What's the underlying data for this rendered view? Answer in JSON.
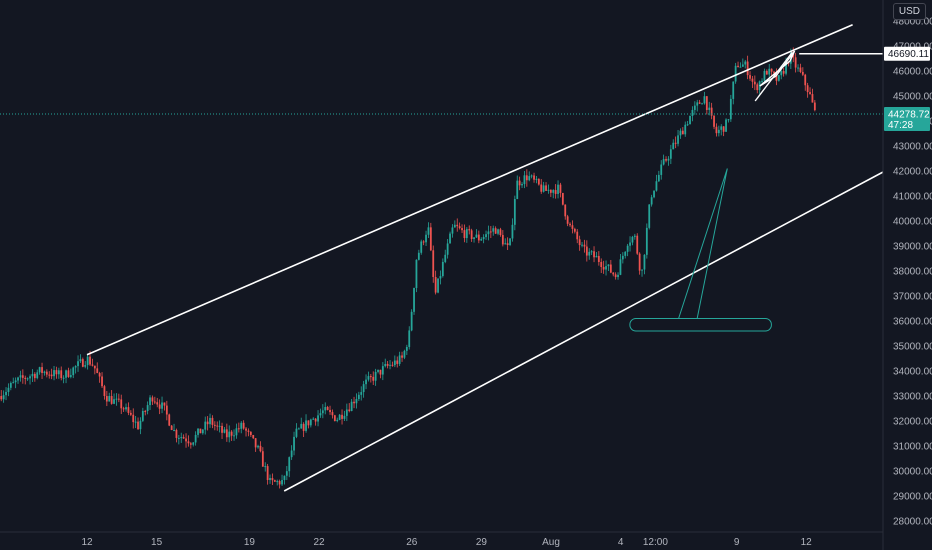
{
  "currency_label": "USD",
  "colors": {
    "background": "#131722",
    "up": "#26a69a",
    "down": "#ef5350",
    "drawing": "#ffffff",
    "last_price": "#26a69a",
    "axis_text": "#b2b5be"
  },
  "chart_data": {
    "type": "candlestick",
    "ylim": [
      27500,
      48500
    ],
    "y_ticks": [
      28000,
      29000,
      30000,
      31000,
      32000,
      33000,
      34000,
      35000,
      36000,
      37000,
      38000,
      39000,
      40000,
      41000,
      42000,
      43000,
      44000,
      45000,
      46000,
      47000,
      48000
    ],
    "y_tick_labels": [
      "28000.00",
      "29000.00",
      "30000.00",
      "31000.00",
      "32000.00",
      "33000.00",
      "34000.00",
      "35000.00",
      "36000.00",
      "37000.00",
      "38000.00",
      "39000.00",
      "40000.00",
      "41000.00",
      "42000.00",
      "43000.00",
      "44000.00",
      "45000.00",
      "46000.00",
      "47000.00",
      "48000.00"
    ],
    "x_ticks": [
      {
        "label": "12",
        "t": 12
      },
      {
        "label": "15",
        "t": 15
      },
      {
        "label": "19",
        "t": 19
      },
      {
        "label": "22",
        "t": 22
      },
      {
        "label": "26",
        "t": 26
      },
      {
        "label": "29",
        "t": 29
      },
      {
        "label": "Aug",
        "t": 32
      },
      {
        "label": "4",
        "t": 35
      },
      {
        "label": "12:00",
        "t": 36.5
      },
      {
        "label": "9",
        "t": 40
      },
      {
        "label": "12",
        "t": 43
      }
    ],
    "price_path": [
      [
        8.2,
        33000
      ],
      [
        9.0,
        33600
      ],
      [
        10.0,
        34000
      ],
      [
        11.0,
        33800
      ],
      [
        12.0,
        34500
      ],
      [
        12.3,
        34200
      ],
      [
        12.8,
        33000
      ],
      [
        13.5,
        32600
      ],
      [
        14.2,
        31800
      ],
      [
        14.8,
        33000
      ],
      [
        15.3,
        32500
      ],
      [
        15.8,
        31500
      ],
      [
        16.5,
        31200
      ],
      [
        17.3,
        32000
      ],
      [
        18.0,
        31400
      ],
      [
        18.7,
        31800
      ],
      [
        19.4,
        30800
      ],
      [
        19.9,
        29500
      ],
      [
        20.5,
        29600
      ],
      [
        21.0,
        31500
      ],
      [
        21.6,
        32000
      ],
      [
        22.2,
        32400
      ],
      [
        22.8,
        32100
      ],
      [
        23.4,
        32700
      ],
      [
        24.0,
        33500
      ],
      [
        24.8,
        34100
      ],
      [
        25.6,
        34500
      ],
      [
        25.9,
        35500
      ],
      [
        26.2,
        38500
      ],
      [
        26.7,
        39800
      ],
      [
        27.0,
        37000
      ],
      [
        27.4,
        38500
      ],
      [
        27.8,
        39800
      ],
      [
        28.3,
        39500
      ],
      [
        28.9,
        39300
      ],
      [
        29.6,
        39700
      ],
      [
        30.2,
        38800
      ],
      [
        30.5,
        41500
      ],
      [
        31.0,
        41800
      ],
      [
        31.7,
        41200
      ],
      [
        32.3,
        41300
      ],
      [
        32.8,
        39800
      ],
      [
        33.4,
        38800
      ],
      [
        34.0,
        38500
      ],
      [
        34.8,
        37800
      ],
      [
        35.3,
        39200
      ],
      [
        35.6,
        39400
      ],
      [
        35.9,
        37800
      ],
      [
        36.3,
        41000
      ],
      [
        36.8,
        42200
      ],
      [
        37.4,
        43200
      ],
      [
        38.0,
        44200
      ],
      [
        38.6,
        45000
      ],
      [
        39.1,
        43500
      ],
      [
        39.6,
        43900
      ],
      [
        40.0,
        46300
      ],
      [
        40.4,
        46200
      ],
      [
        40.8,
        45300
      ],
      [
        41.3,
        46000
      ],
      [
        41.8,
        45600
      ],
      [
        42.3,
        46600
      ],
      [
        42.8,
        45800
      ],
      [
        43.1,
        45200
      ],
      [
        43.4,
        44250
      ]
    ],
    "last_price": 44278.72,
    "last_price_label": "44278.72",
    "countdown_label": "47:28",
    "level_price": 46690.11,
    "level_label": "46690.11",
    "drawings": {
      "channel_upper": {
        "p1": {
          "t": 12.0,
          "price": 34650
        },
        "p2": {
          "t": 45.0,
          "price": 47850
        }
      },
      "channel_lower": {
        "p1": {
          "t": 20.5,
          "price": 29200
        },
        "p2": {
          "t": 47.0,
          "price": 42300
        }
      },
      "horizontal_ray": {
        "t": 42.7,
        "price": 46690.11
      },
      "flag_pole": [
        {
          "t": 40.8,
          "price": 44800
        },
        {
          "t": 42.4,
          "price": 46750
        }
      ],
      "flag_box": [
        {
          "t": 41.0,
          "price": 45400
        },
        {
          "t": 41.7,
          "price": 45800
        },
        {
          "t": 42.5,
          "price": 46800
        },
        {
          "t": 42.3,
          "price": 46400
        }
      ],
      "callout_box": {
        "t1": 35.4,
        "t2": 41.5,
        "p_top": 36100,
        "p_bottom": 35600
      },
      "callout_pointer": [
        {
          "t": 37.5,
          "price": 36100
        },
        {
          "t": 39.6,
          "price": 42100
        },
        {
          "t": 38.3,
          "price": 36100
        }
      ]
    }
  }
}
